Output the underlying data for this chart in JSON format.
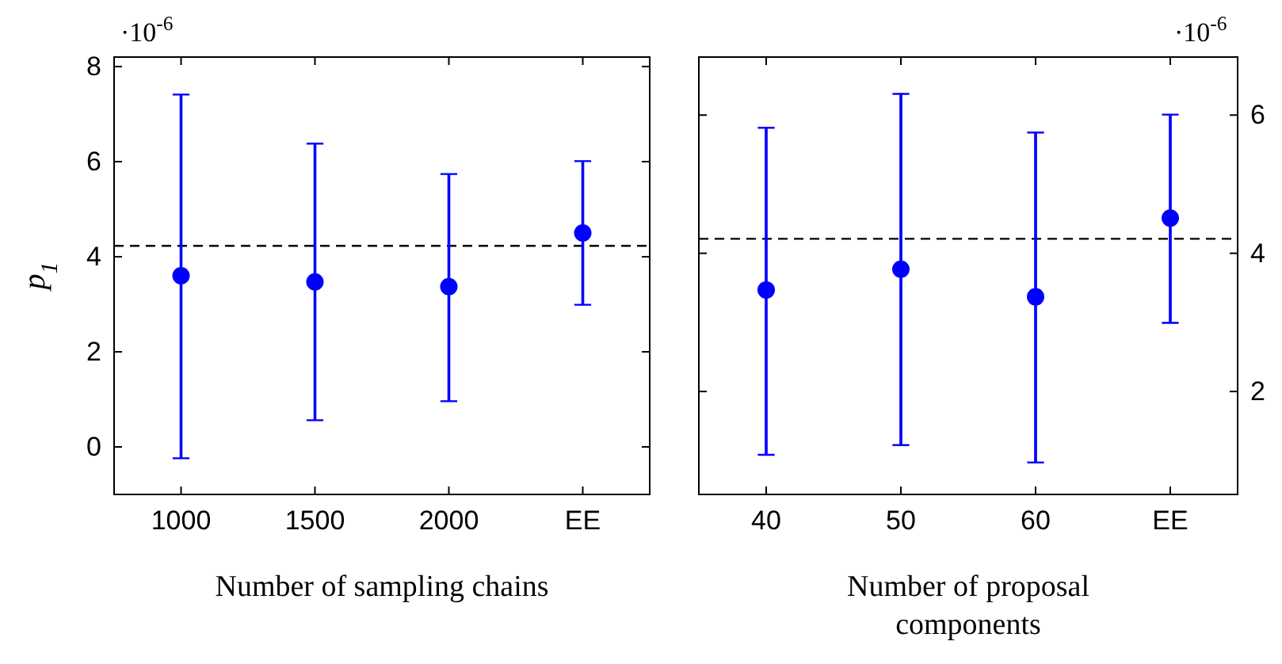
{
  "chart_data": [
    {
      "type": "scatter",
      "xlabel": "Number of sampling chains",
      "ylabel": "p$_{1}$",
      "categories": [
        "1000",
        "1500",
        "2000",
        "EE"
      ],
      "marker": "circle",
      "ylim": [
        -1.0,
        8.2
      ],
      "yticks": [
        0,
        2,
        4,
        6,
        8
      ],
      "annotations": [
        "·10$^{-6}$"
      ],
      "series": [
        {
          "color": "#0000ff",
          "values": [
            3.6,
            3.47,
            3.37,
            4.5
          ],
          "errors": [
            [
              -0.23,
              7.4
            ],
            [
              0.57,
              6.37
            ],
            [
              0.97,
              5.73
            ],
            [
              3.0,
              6.0
            ]
          ]
        }
      ],
      "ref_lines": [
        {
          "axis": "y",
          "value": 4.23,
          "color": "#000000",
          "line_style": "dashed"
        }
      ]
    },
    {
      "type": "scatter",
      "xlabel": "Number of proposal components",
      "categories": [
        "40",
        "50",
        "60",
        "EE"
      ],
      "marker": "circle",
      "y2lim": [
        0.51,
        6.84
      ],
      "y2ticks": [
        2,
        4,
        6
      ],
      "annotations": [
        "·10$^{-6}$"
      ],
      "series": [
        {
          "axis": "y2",
          "color": "#0000ff",
          "values": [
            3.47,
            3.77,
            3.37,
            4.51
          ],
          "errors": [
            [
              1.09,
              5.81
            ],
            [
              1.23,
              6.3
            ],
            [
              0.98,
              5.74
            ],
            [
              3.0,
              6.0
            ]
          ]
        }
      ],
      "ref_lines": [
        {
          "axis": "y2",
          "value": 4.21,
          "color": "#000000",
          "line_style": "dashed"
        }
      ]
    }
  ]
}
